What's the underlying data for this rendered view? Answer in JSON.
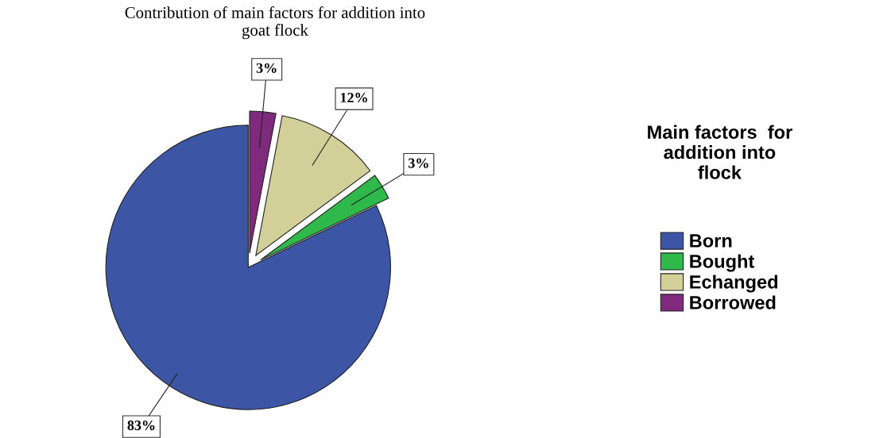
{
  "chart_data": {
    "type": "pie",
    "title": "Contribution of main factors for addition into\ngoat flock",
    "categories": [
      "Born",
      "Bought",
      "Echanged",
      "Borrowed"
    ],
    "values": [
      83,
      3,
      12,
      3
    ],
    "colors": [
      "#3c55a5",
      "#2fb94a",
      "#d3cf98",
      "#7f2a7c"
    ],
    "value_labels": [
      "83%",
      "3%",
      "12%",
      "3%"
    ],
    "legend_title": "Main factors  for\naddition into\nflock",
    "legend": "right"
  }
}
